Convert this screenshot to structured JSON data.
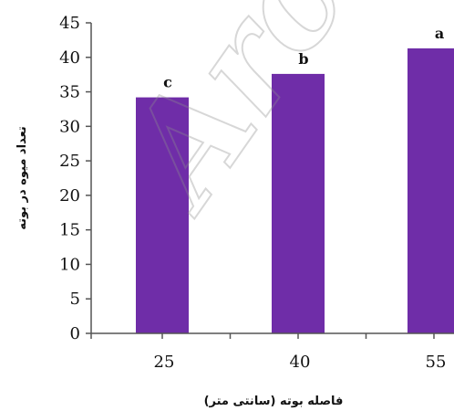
{
  "chart_data": {
    "type": "bar",
    "title": "",
    "xlabel": "فاصله بوته (سانتی متر)",
    "ylabel": "تعداد میوه در بوته",
    "categories": [
      "25",
      "40",
      "55"
    ],
    "values": [
      34.2,
      37.6,
      41.3
    ],
    "significance_letters": [
      "c",
      "b",
      "a"
    ],
    "ylim": [
      0,
      45
    ],
    "yticks": [
      0,
      5,
      10,
      15,
      20,
      25,
      30,
      35,
      40,
      45
    ],
    "bar_color": "#6f2da8",
    "grid": false,
    "legend": "none"
  },
  "watermark_text": "Arc"
}
